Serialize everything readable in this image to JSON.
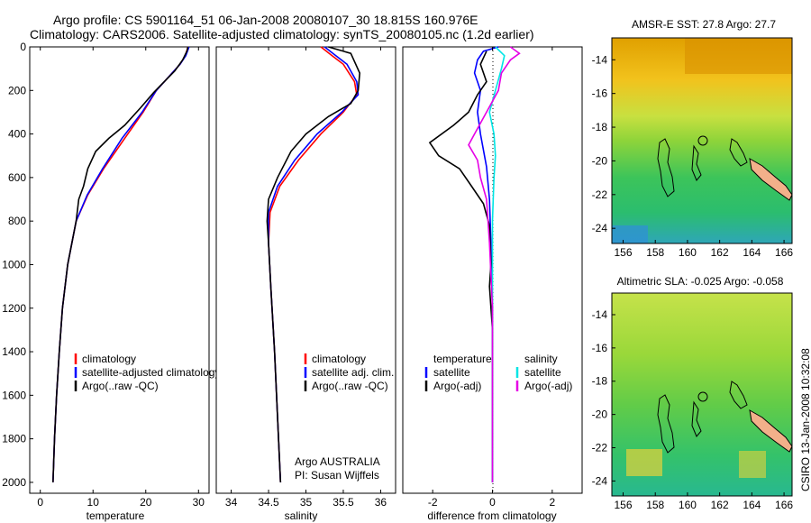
{
  "titles": {
    "line1": "Argo profile: CS 5901164_51 06-Jan-2008 20080107_30 18.815S 160.976E",
    "line2": "Climatology: CARS2006. Satellite-adjusted climatology: synTS_20080105.nc (1.2d earlier)"
  },
  "colors": {
    "climatology": "#ff0000",
    "satellite": "#0000ff",
    "argo": "#000000",
    "sal_sat": "#00e5e5",
    "sal_argo": "#e600e6"
  },
  "side_label": "CSIRO 13-Jan-2008 10:32:08",
  "attribution": {
    "line1": "Argo AUSTRALIA",
    "line2": "PI: Susan Wijffels"
  },
  "chart_data": [
    {
      "type": "line",
      "name": "temperature-panel",
      "xlabel": "temperature",
      "ylabel": "",
      "xlim": [
        -2,
        32
      ],
      "ylim": [
        2050,
        0
      ],
      "xticks": [
        0,
        10,
        20,
        30
      ],
      "yticks": [
        0,
        200,
        400,
        600,
        800,
        1000,
        1200,
        1400,
        1600,
        1800,
        2000
      ],
      "legend": [
        "climatology",
        "satellite-adjusted climatology",
        "Argo(..raw -QC)"
      ],
      "series": [
        {
          "name": "climatology",
          "color": "#ff0000",
          "points": [
            [
              28,
              0
            ],
            [
              27.5,
              40
            ],
            [
              26.5,
              80
            ],
            [
              25,
              120
            ],
            [
              23.5,
              160
            ],
            [
              22,
              200
            ],
            [
              19.5,
              300
            ],
            [
              16,
              420
            ],
            [
              12,
              560
            ],
            [
              9,
              680
            ],
            [
              6.8,
              800
            ],
            [
              5.2,
              1000
            ],
            [
              4.2,
              1200
            ],
            [
              3.6,
              1400
            ],
            [
              3.1,
              1600
            ],
            [
              2.7,
              1800
            ],
            [
              2.4,
              2000
            ]
          ]
        },
        {
          "name": "satellite-adjusted",
          "color": "#0000ff",
          "points": [
            [
              28.2,
              0
            ],
            [
              27.6,
              40
            ],
            [
              26.5,
              80
            ],
            [
              25,
              120
            ],
            [
              23.5,
              160
            ],
            [
              22,
              200
            ],
            [
              19.3,
              300
            ],
            [
              15.5,
              420
            ],
            [
              11.8,
              560
            ],
            [
              8.9,
              680
            ],
            [
              6.8,
              800
            ],
            [
              5.2,
              1000
            ],
            [
              4.2,
              1200
            ],
            [
              3.6,
              1400
            ],
            [
              3.1,
              1600
            ],
            [
              2.7,
              1800
            ],
            [
              2.4,
              2000
            ]
          ]
        },
        {
          "name": "argo",
          "color": "#000000",
          "points": [
            [
              28,
              0
            ],
            [
              27.8,
              20
            ],
            [
              27,
              60
            ],
            [
              25.5,
              110
            ],
            [
              23.5,
              160
            ],
            [
              21.5,
              210
            ],
            [
              19,
              280
            ],
            [
              16,
              360
            ],
            [
              13,
              420
            ],
            [
              10.5,
              480
            ],
            [
              9,
              560
            ],
            [
              8.2,
              640
            ],
            [
              7.3,
              700
            ],
            [
              6.8,
              800
            ],
            [
              5.2,
              1000
            ],
            [
              4.2,
              1200
            ],
            [
              3.6,
              1400
            ],
            [
              3.1,
              1600
            ],
            [
              2.7,
              1800
            ],
            [
              2.4,
              2000
            ]
          ]
        }
      ]
    },
    {
      "type": "line",
      "name": "salinity-panel",
      "xlabel": "salinity",
      "ylabel": "",
      "xlim": [
        33.8,
        36.2
      ],
      "ylim": [
        2050,
        0
      ],
      "xticks": [
        34,
        34.5,
        35,
        35.5,
        36
      ],
      "yticks": [],
      "legend": [
        "climatology",
        "satellite adj. clim.",
        "Argo(..raw -QC)"
      ],
      "series": [
        {
          "name": "climatology",
          "color": "#ff0000",
          "points": [
            [
              35.2,
              0
            ],
            [
              35.35,
              40
            ],
            [
              35.5,
              80
            ],
            [
              35.65,
              160
            ],
            [
              35.68,
              220
            ],
            [
              35.5,
              300
            ],
            [
              35.2,
              400
            ],
            [
              34.9,
              520
            ],
            [
              34.65,
              640
            ],
            [
              34.52,
              760
            ],
            [
              34.5,
              900
            ],
            [
              34.53,
              1100
            ],
            [
              34.58,
              1400
            ],
            [
              34.62,
              1700
            ],
            [
              34.66,
              2000
            ]
          ]
        },
        {
          "name": "satellite-adjusted",
          "color": "#0000ff",
          "points": [
            [
              35.25,
              0
            ],
            [
              35.4,
              40
            ],
            [
              35.55,
              80
            ],
            [
              35.68,
              160
            ],
            [
              35.7,
              220
            ],
            [
              35.48,
              300
            ],
            [
              35.15,
              400
            ],
            [
              34.85,
              520
            ],
            [
              34.62,
              640
            ],
            [
              34.5,
              760
            ],
            [
              34.5,
              900
            ],
            [
              34.53,
              1100
            ],
            [
              34.58,
              1400
            ],
            [
              34.62,
              1700
            ],
            [
              34.66,
              2000
            ]
          ]
        },
        {
          "name": "argo",
          "color": "#000000",
          "points": [
            [
              35.3,
              0
            ],
            [
              35.6,
              30
            ],
            [
              35.72,
              120
            ],
            [
              35.7,
              200
            ],
            [
              35.6,
              260
            ],
            [
              35.3,
              320
            ],
            [
              35,
              400
            ],
            [
              34.8,
              480
            ],
            [
              34.62,
              600
            ],
            [
              34.5,
              700
            ],
            [
              34.48,
              800
            ],
            [
              34.5,
              900
            ],
            [
              34.53,
              1100
            ],
            [
              34.58,
              1400
            ],
            [
              34.62,
              1700
            ],
            [
              34.66,
              2000
            ]
          ]
        }
      ]
    },
    {
      "type": "line",
      "name": "difference-panel",
      "xlabel": "difference from climatology",
      "ylabel": "",
      "xlim": [
        -3,
        3
      ],
      "ylim": [
        2050,
        0
      ],
      "xticks": [
        -2,
        0,
        2
      ],
      "yticks": [],
      "legend": [
        "temperature",
        "satellite",
        "Argo(-adj)",
        "salinity",
        "satellite",
        "Argo(-adj)"
      ],
      "series": [
        {
          "name": "temperature-satellite",
          "color": "#0000ff",
          "points": [
            [
              0.2,
              0
            ],
            [
              -0.3,
              20
            ],
            [
              -0.5,
              60
            ],
            [
              -0.6,
              120
            ],
            [
              -0.4,
              200
            ],
            [
              -0.5,
              300
            ],
            [
              -0.4,
              400
            ],
            [
              -0.2,
              550
            ],
            [
              -0.1,
              700
            ],
            [
              -0.05,
              900
            ],
            [
              0,
              1200
            ],
            [
              0,
              1600
            ],
            [
              0,
              2000
            ]
          ]
        },
        {
          "name": "temperature-argo",
          "color": "#000000",
          "points": [
            [
              -0.2,
              20
            ],
            [
              -0.4,
              80
            ],
            [
              -0.2,
              160
            ],
            [
              -0.5,
              220
            ],
            [
              -0.8,
              300
            ],
            [
              -1.3,
              360
            ],
            [
              -2.1,
              440
            ],
            [
              -1.8,
              500
            ],
            [
              -1.1,
              560
            ],
            [
              -0.7,
              640
            ],
            [
              -0.3,
              720
            ],
            [
              -0.1,
              820
            ],
            [
              -0.05,
              1000
            ],
            [
              -0.1,
              1100
            ],
            [
              0,
              1300
            ],
            [
              0,
              1600
            ],
            [
              0,
              2000
            ]
          ]
        },
        {
          "name": "salinity-satellite",
          "color": "#00e5e5",
          "points": [
            [
              0.1,
              0
            ],
            [
              0.4,
              40
            ],
            [
              0.3,
              100
            ],
            [
              0.1,
              200
            ],
            [
              -0.1,
              300
            ],
            [
              0.05,
              400
            ],
            [
              0.1,
              500
            ],
            [
              0.05,
              600
            ],
            [
              0,
              800
            ],
            [
              0,
              1200
            ],
            [
              0,
              1600
            ],
            [
              0,
              2000
            ]
          ]
        },
        {
          "name": "salinity-argo",
          "color": "#e600e6",
          "points": [
            [
              0.6,
              0
            ],
            [
              0.9,
              30
            ],
            [
              0.6,
              60
            ],
            [
              0.3,
              120
            ],
            [
              0.2,
              200
            ],
            [
              -0.2,
              300
            ],
            [
              -0.6,
              400
            ],
            [
              -0.8,
              450
            ],
            [
              -0.5,
              520
            ],
            [
              -0.4,
              600
            ],
            [
              -0.2,
              700
            ],
            [
              -0.1,
              900
            ],
            [
              0,
              1200
            ],
            [
              0,
              1600
            ],
            [
              0,
              2000
            ]
          ]
        }
      ]
    },
    {
      "type": "heatmap",
      "name": "sst-map",
      "title": "AMSR-E SST: 27.8 Argo: 27.7",
      "xlim": [
        155.3,
        166.5
      ],
      "ylim": [
        -24.9,
        -12.7
      ],
      "xticks": [
        156,
        158,
        160,
        162,
        164,
        166
      ],
      "yticks": [
        -14,
        -16,
        -18,
        -20,
        -22,
        -24
      ]
    },
    {
      "type": "heatmap",
      "name": "sla-map",
      "title": "Altimetric SLA: -0.025 Argo: -0.058",
      "xlim": [
        155.3,
        166.5
      ],
      "ylim": [
        -24.9,
        -12.7
      ],
      "xticks": [
        156,
        158,
        160,
        162,
        164,
        166
      ],
      "yticks": [
        -14,
        -16,
        -18,
        -20,
        -22,
        -24
      ]
    }
  ]
}
